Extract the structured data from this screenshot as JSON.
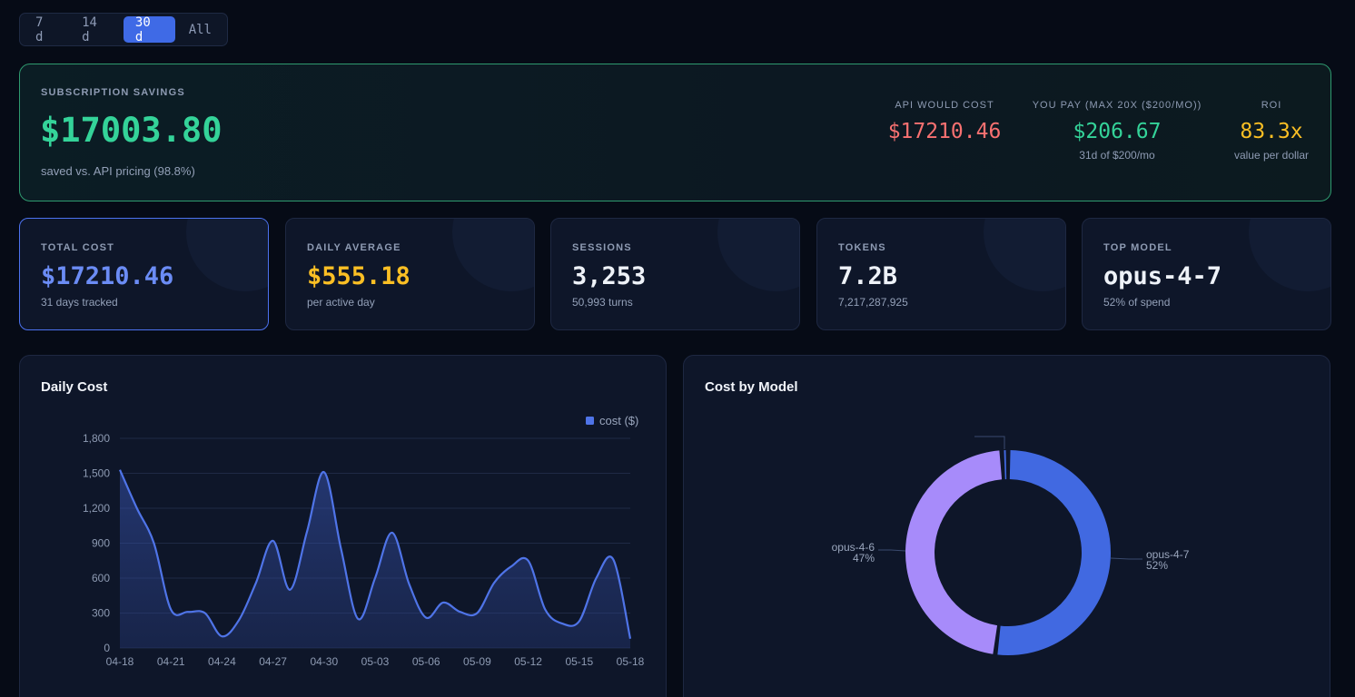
{
  "range_tabs": [
    {
      "label": "7 d",
      "active": false
    },
    {
      "label": "14 d",
      "active": false
    },
    {
      "label": "30 d",
      "active": true
    },
    {
      "label": "All",
      "active": false
    }
  ],
  "savings": {
    "label": "SUBSCRIPTION SAVINGS",
    "amount": "$17003.80",
    "sub": "saved vs. API pricing (98.8%)",
    "api_cost": {
      "label": "API WOULD COST",
      "value": "$17210.46"
    },
    "you_pay": {
      "label": "YOU PAY (MAX 20X ($200/MO))",
      "value": "$206.67",
      "sub": "31d of $200/mo"
    },
    "roi": {
      "label": "ROI",
      "value": "83.3x",
      "sub": "value per dollar"
    }
  },
  "stats": [
    {
      "label": "TOTAL COST",
      "value": "$17210.46",
      "sub": "31 days tracked",
      "color": "#6b8cf5"
    },
    {
      "label": "DAILY AVERAGE",
      "value": "$555.18",
      "sub": "per active day",
      "color": "#fbbf24"
    },
    {
      "label": "SESSIONS",
      "value": "3,253",
      "sub": "50,993 turns",
      "color": "#eef2f8"
    },
    {
      "label": "TOKENS",
      "value": "7.2B",
      "sub": "7,217,287,925",
      "color": "#eef2f8"
    },
    {
      "label": "TOP MODEL",
      "value": "opus-4-7",
      "sub": "52% of spend",
      "color": "#eef2f8"
    }
  ],
  "colors": {
    "accent": "#3f6ae6",
    "green": "#34d399",
    "red": "#f87171",
    "amber": "#fbbf24",
    "opus_4_7": "#4169e1",
    "opus_4_6": "#a78bfa"
  },
  "daily_cost_panel": {
    "title": "Daily Cost"
  },
  "cost_by_model_panel": {
    "title": "Cost by Model"
  },
  "chart_data": [
    {
      "type": "area",
      "title": "Daily Cost",
      "legend": "top-right",
      "series": [
        {
          "name": "cost ($)",
          "values": [
            1530,
            1200,
            900,
            330,
            310,
            300,
            100,
            240,
            560,
            920,
            500,
            1000,
            1510,
            850,
            250,
            600,
            990,
            550,
            260,
            390,
            310,
            300,
            560,
            700,
            750,
            330,
            210,
            230,
            600,
            760,
            80
          ]
        }
      ],
      "x": [
        "04-18",
        "04-19",
        "04-20",
        "04-21",
        "04-22",
        "04-23",
        "04-24",
        "04-25",
        "04-26",
        "04-27",
        "04-28",
        "04-29",
        "04-30",
        "05-01",
        "05-02",
        "05-03",
        "05-04",
        "05-05",
        "05-06",
        "05-07",
        "05-08",
        "05-09",
        "05-10",
        "05-11",
        "05-12",
        "05-13",
        "05-14",
        "05-15",
        "05-16",
        "05-17",
        "05-18"
      ],
      "x_tick_labels": [
        "04-18",
        "04-21",
        "04-24",
        "04-27",
        "04-30",
        "05-03",
        "05-06",
        "05-09",
        "05-12",
        "05-15",
        "05-18"
      ],
      "y_ticks": [
        "0",
        "300",
        "600",
        "900",
        "1,200",
        "1,500",
        "1,800"
      ],
      "ylim": [
        0,
        1800
      ],
      "grid": true
    },
    {
      "type": "pie",
      "title": "Cost by Model",
      "donut": true,
      "slices": [
        {
          "name": "opus-4-7",
          "pct_label": "52%",
          "value": 52,
          "color": "#4169e1"
        },
        {
          "name": "opus-4-6",
          "pct_label": "47%",
          "value": 47,
          "color": "#a78bfa"
        },
        {
          "name": "",
          "pct_label": "",
          "value": 1,
          "color": "#4169e1"
        }
      ]
    }
  ]
}
